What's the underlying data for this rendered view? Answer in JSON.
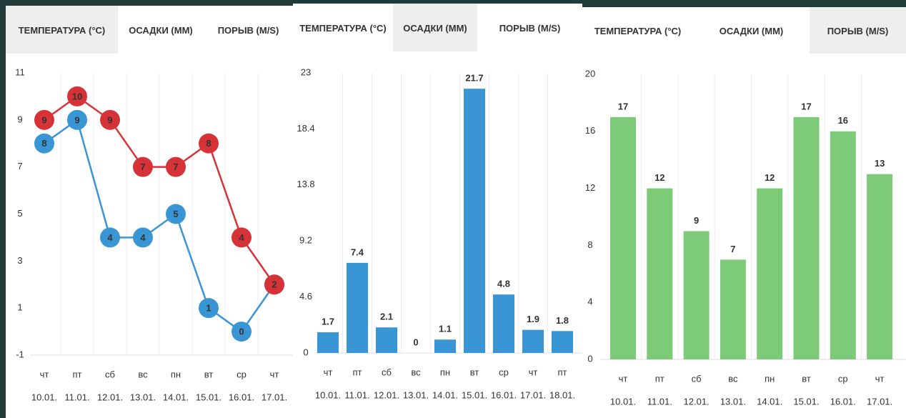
{
  "chart_data": [
    {
      "type": "line",
      "tabs": [
        "ТЕМПЕРАТУРА (°C)",
        "ОСАДКИ (ММ)",
        "ПОРЫВ (M/S)"
      ],
      "active_tab": 0,
      "categories": [
        "чт",
        "пт",
        "сб",
        "вс",
        "пн",
        "вт",
        "ср",
        "чт"
      ],
      "dates": [
        "10.01.",
        "11.01.",
        "12.01.",
        "13.01.",
        "14.01.",
        "15.01.",
        "16.01.",
        "17.01."
      ],
      "series": [
        {
          "color": "#3a95d5",
          "values": [
            8,
            9,
            4,
            4,
            5,
            1,
            0,
            2
          ]
        },
        {
          "color": "#d63338",
          "values": [
            9,
            10,
            9,
            7,
            7,
            8,
            4,
            2
          ]
        }
      ],
      "ylim": [
        -1,
        11
      ],
      "yticks": [
        -1,
        1,
        3,
        5,
        7,
        9,
        11
      ]
    },
    {
      "type": "bar",
      "tabs": [
        "ТЕМПЕРАТУРА (°C)",
        "ОСАДКИ (ММ)",
        "ПОРЫВ (M/S)"
      ],
      "active_tab": 1,
      "categories": [
        "чт",
        "пт",
        "сб",
        "вс",
        "пн",
        "вт",
        "ср",
        "чт",
        "пт"
      ],
      "dates": [
        "10.01.",
        "11.01.",
        "12.01.",
        "13.01.",
        "14.01.",
        "15.01.",
        "16.01.",
        "17.01.",
        "18.01."
      ],
      "values": [
        1.7,
        7.4,
        2.1,
        0,
        1.1,
        21.7,
        4.8,
        1.9,
        1.8
      ],
      "color": "#3a95d5",
      "ylim": [
        0,
        23
      ],
      "yticks": [
        0,
        4.6,
        9.2,
        13.8,
        18.4,
        23
      ]
    },
    {
      "type": "bar",
      "tabs": [
        "ТЕМПЕРАТУРА (°C)",
        "ОСАДКИ (ММ)",
        "ПОРЫВ (M/S)"
      ],
      "active_tab": 2,
      "categories": [
        "чт",
        "пт",
        "сб",
        "вс",
        "пн",
        "вт",
        "ср",
        "чт"
      ],
      "dates": [
        "10.01.",
        "11.01.",
        "12.01.",
        "13.01.",
        "14.01.",
        "15.01.",
        "16.01.",
        "17.01."
      ],
      "values": [
        17,
        12,
        9,
        7,
        12,
        17,
        16,
        13
      ],
      "color": "#7dcb78",
      "ylim": [
        0,
        20
      ],
      "yticks": [
        0,
        4,
        8,
        12,
        16,
        20
      ]
    }
  ]
}
